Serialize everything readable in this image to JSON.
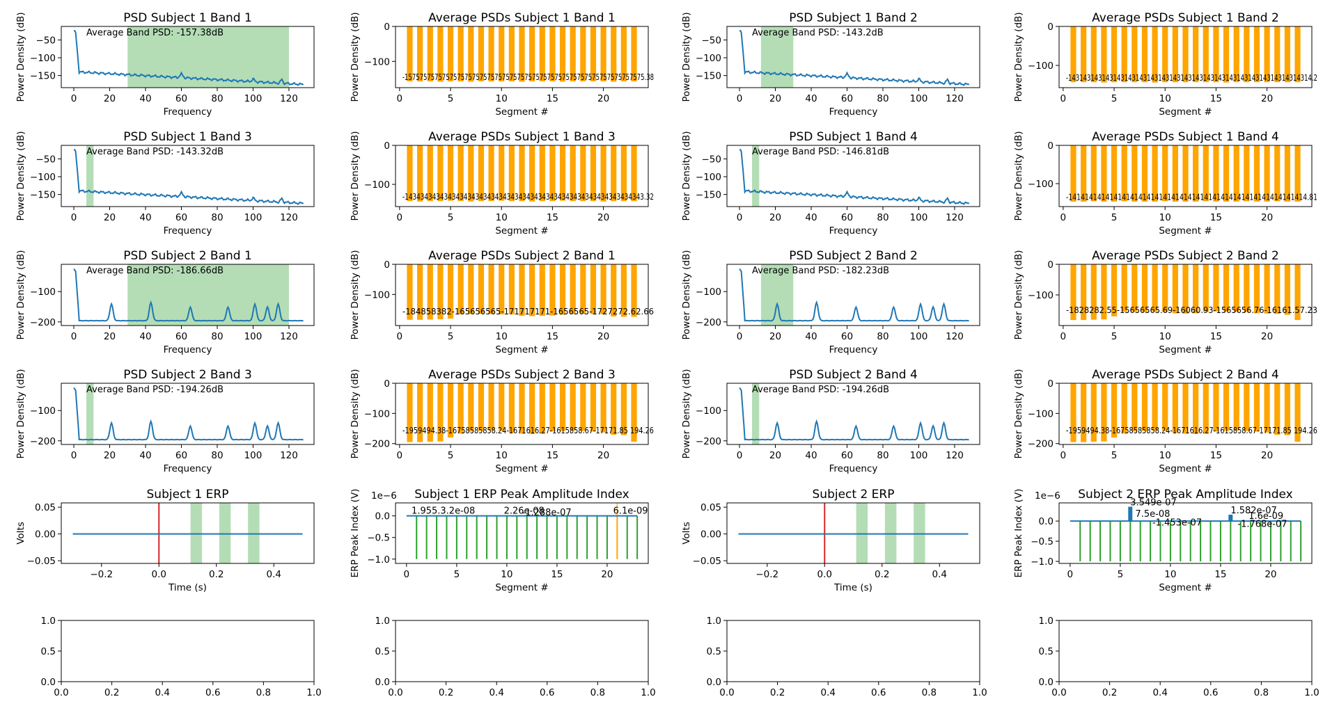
{
  "figure": {
    "colors": {
      "line": "#1f77b4",
      "bar": "#ffa500",
      "band_fill": "#4caf50",
      "band_alpha": 0.42,
      "stem": "#2ca02c",
      "marker": "#1f77b4",
      "onset": "#d62728",
      "highlight": "#ffa500"
    }
  },
  "chart_data": [
    {
      "id": "psd-s1-b1",
      "type": "line",
      "title": "PSD Subject 1 Band 1",
      "xlabel": "Frequency",
      "ylabel": "Power Density (dB)",
      "xlim": [
        -7,
        134
      ],
      "ylim": [
        -184,
        -12
      ],
      "xticks": [
        0,
        20,
        40,
        60,
        80,
        100,
        120
      ],
      "yticks": [
        -50,
        -100,
        -150
      ],
      "band": [
        30,
        120
      ],
      "annotation": "Average Band PSD: -157.38dB",
      "profile": "s1"
    },
    {
      "id": "avg-s1-b1",
      "type": "bar",
      "title": "Average PSDs Subject 1 Band 1",
      "xlabel": "Segment #",
      "ylabel": "Power Density (dB)",
      "xlim": [
        -0.4,
        24.4
      ],
      "ylim": [
        -175,
        0
      ],
      "xticks": [
        0,
        5,
        10,
        15,
        20
      ],
      "yticks": [
        0,
        -100
      ],
      "values": [
        -157,
        -157,
        -157,
        -158,
        -157,
        -157,
        -158,
        -157,
        -157,
        -157,
        -157,
        -158,
        -157,
        -157,
        -157,
        -158,
        -157,
        -157,
        -157,
        -157,
        -158,
        -157,
        -157
      ],
      "bar_labels": "-1575757575757575757575757575757575757575757575757575757575757575.38"
    },
    {
      "id": "psd-s1-b2",
      "type": "line",
      "title": "PSD Subject 1 Band 2",
      "xlabel": "Frequency",
      "ylabel": "Power Density (dB)",
      "xlim": [
        -7,
        134
      ],
      "ylim": [
        -184,
        -12
      ],
      "xticks": [
        0,
        20,
        40,
        60,
        80,
        100,
        120
      ],
      "yticks": [
        -50,
        -100,
        -150
      ],
      "band": [
        12,
        30
      ],
      "annotation": "Average Band PSD: -143.2dB",
      "profile": "s1"
    },
    {
      "id": "avg-s1-b2",
      "type": "bar",
      "title": "Average PSDs Subject 1 Band 2",
      "xlabel": "Segment #",
      "ylabel": "Power Density (dB)",
      "xlim": [
        -0.4,
        24.4
      ],
      "ylim": [
        -157,
        0
      ],
      "xticks": [
        0,
        5,
        10,
        15,
        20
      ],
      "yticks": [
        0,
        -100
      ],
      "values": [
        -143,
        -143,
        -143,
        -144,
        -143,
        -143,
        -143,
        -143,
        -144,
        -143,
        -143,
        -143,
        -143,
        -143,
        -143,
        -144,
        -143,
        -143,
        -143,
        -143,
        -143,
        -143,
        -143
      ],
      "bar_labels": "-14314314314314314314314314314314314314314314314314314314314314314.2"
    },
    {
      "id": "psd-s1-b3",
      "type": "line",
      "title": "PSD Subject 1 Band 3",
      "xlabel": "Frequency",
      "ylabel": "Power Density (dB)",
      "xlim": [
        -7,
        134
      ],
      "ylim": [
        -184,
        -12
      ],
      "xticks": [
        0,
        20,
        40,
        60,
        80,
        100,
        120
      ],
      "yticks": [
        -50,
        -100,
        -150
      ],
      "band": [
        7,
        11
      ],
      "annotation": "Average Band PSD: -143.32dB",
      "profile": "s1"
    },
    {
      "id": "avg-s1-b3",
      "type": "bar",
      "title": "Average PSDs Subject 1 Band 3",
      "xlabel": "Segment #",
      "ylabel": "Power Density (dB)",
      "xlim": [
        -0.4,
        24.4
      ],
      "ylim": [
        -157,
        0
      ],
      "xticks": [
        0,
        5,
        10,
        15,
        20
      ],
      "yticks": [
        0,
        -100
      ],
      "values": [
        -143,
        -144,
        -143,
        -143,
        -142,
        -143,
        -144,
        -143,
        -143,
        -142,
        -143,
        -143,
        -144,
        -143,
        -143,
        -142,
        -143,
        -143,
        -143,
        -144,
        -143,
        -143,
        -143
      ],
      "bar_labels": "-1434343434343434343434343434343434343434343434343434343434343.32"
    },
    {
      "id": "psd-s1-b4",
      "type": "line",
      "title": "PSD Subject 1 Band 4",
      "xlabel": "Frequency",
      "ylabel": "Power Density (dB)",
      "xlim": [
        -7,
        134
      ],
      "ylim": [
        -184,
        -12
      ],
      "xticks": [
        0,
        20,
        40,
        60,
        80,
        100,
        120
      ],
      "yticks": [
        -50,
        -100,
        -150
      ],
      "band": [
        7,
        11
      ],
      "annotation": "Average Band PSD: -146.81dB",
      "profile": "s1"
    },
    {
      "id": "avg-s1-b4",
      "type": "bar",
      "title": "Average PSDs Subject 1 Band 4",
      "xlabel": "Segment #",
      "ylabel": "Power Density (dB)",
      "xlim": [
        -0.4,
        24.4
      ],
      "ylim": [
        -160,
        0
      ],
      "xticks": [
        0,
        5,
        10,
        15,
        20
      ],
      "yticks": [
        0,
        -100
      ],
      "values": [
        -147,
        -147,
        -146,
        -147,
        -147,
        -146,
        -147,
        -147,
        -147,
        -146,
        -147,
        -147,
        -147,
        -146,
        -147,
        -147,
        -147,
        -146,
        -147,
        -147,
        -146,
        -147,
        -147
      ],
      "bar_labels": "-1414141414141414141414141414141414141414141414141414141414.81"
    },
    {
      "id": "psd-s2-b1",
      "type": "line",
      "title": "PSD Subject 2 Band 1",
      "xlabel": "Frequency",
      "ylabel": "Power Density (dB)",
      "xlim": [
        -7,
        134
      ],
      "ylim": [
        -212,
        -10
      ],
      "xticks": [
        0,
        20,
        40,
        60,
        80,
        100,
        120
      ],
      "yticks": [
        -100,
        -200
      ],
      "band": [
        30,
        120
      ],
      "annotation": "Average Band PSD: -186.66dB",
      "profile": "s2"
    },
    {
      "id": "avg-s2-b1",
      "type": "bar",
      "title": "Average PSDs Subject 2 Band 1",
      "xlabel": "Segment #",
      "ylabel": "Power Density (dB)",
      "xlim": [
        -0.4,
        24.4
      ],
      "ylim": [
        -203,
        0
      ],
      "xticks": [
        0,
        5,
        10,
        15,
        20
      ],
      "yticks": [
        0,
        -100
      ],
      "values": [
        -184,
        -184,
        -183,
        -182,
        -180,
        -166,
        -165,
        -164,
        -165,
        -166,
        -166,
        -171,
        -172,
        -171,
        -170,
        -167,
        -165,
        -164,
        -165,
        -166,
        -173,
        -174,
        -174
      ],
      "bar_labels": "-184858382-165656565-171717171-1656565-1727272.62.66"
    },
    {
      "id": "psd-s2-b2",
      "type": "line",
      "title": "PSD Subject 2 Band 2",
      "xlabel": "Frequency",
      "ylabel": "Power Density (dB)",
      "xlim": [
        -7,
        134
      ],
      "ylim": [
        -212,
        -10
      ],
      "xticks": [
        0,
        20,
        40,
        60,
        80,
        100,
        120
      ],
      "yticks": [
        -100,
        -200
      ],
      "band": [
        12,
        30
      ],
      "annotation": "Average Band PSD: -182.23dB",
      "profile": "s2"
    },
    {
      "id": "avg-s2-b2",
      "type": "bar",
      "title": "Average PSDs Subject 2 Band 2",
      "xlabel": "Segment #",
      "ylabel": "Power Density (dB)",
      "xlim": [
        -0.4,
        24.4
      ],
      "ylim": [
        -200,
        0
      ],
      "xticks": [
        0,
        5,
        10,
        15,
        20
      ],
      "yticks": [
        0,
        -100
      ],
      "values": [
        -182,
        -182,
        -181,
        -180,
        -170,
        -155,
        -155,
        -156,
        -155,
        -156,
        -160,
        -161,
        -160,
        -155,
        -154,
        -154,
        -155,
        -156,
        -160,
        -161,
        -162,
        -165,
        -182
      ],
      "bar_labels": "-1828282.55-15656565.69-16060.93-1565656.76-16161.57.23"
    },
    {
      "id": "psd-s2-b3",
      "type": "line",
      "title": "PSD Subject 2 Band 3",
      "xlabel": "Frequency",
      "ylabel": "Power Density (dB)",
      "xlim": [
        -7,
        134
      ],
      "ylim": [
        -212,
        -10
      ],
      "xticks": [
        0,
        20,
        40,
        60,
        80,
        100,
        120
      ],
      "yticks": [
        -100,
        -200
      ],
      "band": [
        7,
        11
      ],
      "annotation": "Average Band PSD: -194.26dB",
      "profile": "s2"
    },
    {
      "id": "avg-s2-b3",
      "type": "bar",
      "title": "Average PSDs Subject 2 Band 3",
      "xlabel": "Segment #",
      "ylabel": "Power Density (dB)",
      "xlim": [
        -0.4,
        24.4
      ],
      "ylim": [
        -203,
        0
      ],
      "xticks": [
        0,
        5,
        10,
        15,
        20
      ],
      "yticks": [
        0,
        -100,
        -200
      ],
      "values": [
        -195,
        -195,
        -194,
        -193,
        -180,
        -167,
        -160,
        -158,
        -157,
        -158,
        -164,
        -167,
        -168,
        -167,
        -160,
        -158,
        -157,
        -158,
        -160,
        -163,
        -171,
        -172,
        -194
      ],
      "bar_labels": "-1959494.38-16758585858.24-1671616.27-1615858.67-17171.85 194.26"
    },
    {
      "id": "psd-s2-b4",
      "type": "line",
      "title": "PSD Subject 2 Band 4",
      "xlabel": "Frequency",
      "ylabel": "Power Density (dB)",
      "xlim": [
        -7,
        134
      ],
      "ylim": [
        -212,
        -10
      ],
      "xticks": [
        0,
        20,
        40,
        60,
        80,
        100,
        120
      ],
      "yticks": [
        -100,
        -200
      ],
      "band": [
        7,
        11
      ],
      "annotation": "Average Band PSD: -194.26dB",
      "profile": "s2"
    },
    {
      "id": "avg-s2-b4",
      "type": "bar",
      "title": "Average PSDs Subject 2 Band 4",
      "xlabel": "Segment #",
      "ylabel": "Power Density (dB)",
      "xlim": [
        -0.4,
        24.4
      ],
      "ylim": [
        -203,
        0
      ],
      "xticks": [
        0,
        5,
        10,
        15,
        20
      ],
      "yticks": [
        0,
        -100,
        -200
      ],
      "values": [
        -195,
        -195,
        -194,
        -193,
        -180,
        -167,
        -160,
        -158,
        -157,
        -158,
        -164,
        -167,
        -168,
        -167,
        -160,
        -158,
        -157,
        -158,
        -160,
        -163,
        -171,
        -172,
        -194
      ],
      "bar_labels": "-1959494.38-16758585858.24-1671616.27-1615858.67-17171.85 194.26"
    },
    {
      "id": "erp-s1",
      "type": "line",
      "title": "Subject 1 ERP",
      "xlabel": "Time (s)",
      "ylabel": "Volts",
      "xlim": [
        -0.34,
        0.54
      ],
      "ylim": [
        -0.055,
        0.058
      ],
      "xticks": [
        -0.2,
        0.0,
        0.2,
        0.4
      ],
      "yticks": [
        0.05,
        0.0,
        -0.05
      ],
      "x": [
        -0.3,
        0.5
      ],
      "y": [
        0,
        0
      ],
      "onset": 0.0,
      "windows": [
        [
          0.11,
          0.15
        ],
        [
          0.21,
          0.25
        ],
        [
          0.31,
          0.35
        ]
      ]
    },
    {
      "id": "erp-peak-s1",
      "type": "stem",
      "title": "Subject 1 ERP Peak Amplitude Index",
      "xlabel": "Segment #",
      "ylabel": "ERP Peak Index (V)",
      "xlim": [
        -1.1,
        24.1
      ],
      "ylim": [
        -1.1,
        0.3
      ],
      "xticks": [
        0,
        5,
        10,
        15,
        20
      ],
      "yticks": [
        0,
        -0.5,
        -1
      ],
      "offset_text": "1e−6",
      "stems_bottom": -1.0,
      "markers": [],
      "highlight_segment": 21,
      "labels": [
        {
          "seg": 0.5,
          "val": 0.02,
          "text": "1.955.3.2e-08"
        },
        {
          "seg": 9.7,
          "val": 0.02,
          "text": "2.26e-08"
        },
        {
          "seg": 11.5,
          "val": -0.02,
          "text": "-1.288e-07"
        },
        {
          "seg": 20.6,
          "val": 0.02,
          "text": "6.1e-09"
        }
      ]
    },
    {
      "id": "erp-s2",
      "type": "line",
      "title": "Subject 2 ERP",
      "xlabel": "Time (s)",
      "ylabel": "Volts",
      "xlim": [
        -0.34,
        0.54
      ],
      "ylim": [
        -0.055,
        0.058
      ],
      "xticks": [
        -0.2,
        0.0,
        0.2,
        0.4
      ],
      "yticks": [
        0.05,
        0.0,
        -0.05
      ],
      "x": [
        -0.3,
        0.5
      ],
      "y": [
        0,
        0
      ],
      "onset": 0.0,
      "windows": [
        [
          0.11,
          0.15
        ],
        [
          0.21,
          0.25
        ],
        [
          0.31,
          0.35
        ]
      ]
    },
    {
      "id": "erp-peak-s2",
      "type": "stem",
      "title": "Subject 2 ERP Peak Amplitude Index",
      "xlabel": "Segment #",
      "ylabel": "ERP Peak Index (V)",
      "xlim": [
        -1.1,
        24.1
      ],
      "ylim": [
        -1.05,
        0.45
      ],
      "xticks": [
        0,
        5,
        10,
        15,
        20
      ],
      "yticks": [
        0.0,
        -0.5,
        -1.0
      ],
      "offset_text": "1e−6",
      "stems_bottom": -1.0,
      "markers": [
        {
          "seg": 6,
          "val": 0.3549
        },
        {
          "seg": 16,
          "val": 0.1582
        }
      ],
      "highlight_segment": null,
      "labels": [
        {
          "seg": 6.0,
          "val": 0.3549,
          "text": "3.549e-07"
        },
        {
          "seg": 6.5,
          "val": 0.075,
          "text": "7.5e-08"
        },
        {
          "seg": 8.2,
          "val": -0.1453,
          "text": "-1.453e-07"
        },
        {
          "seg": 16.0,
          "val": 0.1582,
          "text": "1.582e-07"
        },
        {
          "seg": 17.8,
          "val": 0.016,
          "text": "1.6e-09"
        },
        {
          "seg": 16.7,
          "val": -0.1768,
          "text": "-1.768e-07"
        }
      ]
    },
    {
      "id": "empty-1",
      "type": "empty",
      "xlim": [
        0,
        1
      ],
      "ylim": [
        0,
        1
      ],
      "xticks": [
        0.0,
        0.2,
        0.4,
        0.6,
        0.8,
        1.0
      ],
      "yticks": [
        0.0,
        0.5,
        1.0
      ]
    },
    {
      "id": "empty-2",
      "type": "empty",
      "xlim": [
        0,
        1
      ],
      "ylim": [
        0,
        1
      ],
      "xticks": [
        0.0,
        0.2,
        0.4,
        0.6,
        0.8,
        1.0
      ],
      "yticks": [
        0.0,
        0.5,
        1.0
      ]
    },
    {
      "id": "empty-3",
      "type": "empty",
      "xlim": [
        0,
        1
      ],
      "ylim": [
        0,
        1
      ],
      "xticks": [
        0.0,
        0.2,
        0.4,
        0.6,
        0.8,
        1.0
      ],
      "yticks": [
        0.0,
        0.5,
        1.0
      ]
    },
    {
      "id": "empty-4",
      "type": "empty",
      "xlim": [
        0,
        1
      ],
      "ylim": [
        0,
        1
      ],
      "xticks": [
        0.0,
        0.2,
        0.4,
        0.6,
        0.8,
        1.0
      ],
      "yticks": [
        0.0,
        0.5,
        1.0
      ]
    }
  ]
}
